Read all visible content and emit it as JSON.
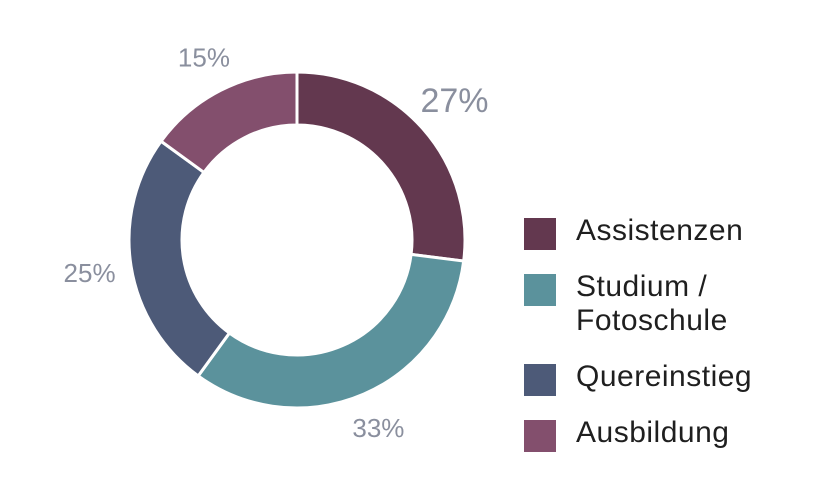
{
  "chart_data": {
    "type": "pie",
    "donut": true,
    "categories": [
      "Assistenzen",
      "Studium / Fotoschule",
      "Quereinstieg",
      "Ausbildung"
    ],
    "values": [
      27,
      33,
      25,
      15
    ],
    "value_labels": [
      "27%",
      "33%",
      "25%",
      "15%"
    ],
    "colors": [
      "#63384f",
      "#5b929c",
      "#4d5a78",
      "#834f6d"
    ],
    "label_color": "#8a8f9e",
    "legend_position": "right",
    "start_angle": "top",
    "direction": "clockwise",
    "legend": [
      {
        "line1": "Assistenzen",
        "line2": "",
        "color": "#63384f"
      },
      {
        "line1": "Studium /",
        "line2": "Fotoschule",
        "color": "#5b929c"
      },
      {
        "line1": "Quereinstieg",
        "line2": "",
        "color": "#4d5a78"
      },
      {
        "line1": "Ausbildung",
        "line2": "",
        "color": "#834f6d"
      }
    ]
  }
}
